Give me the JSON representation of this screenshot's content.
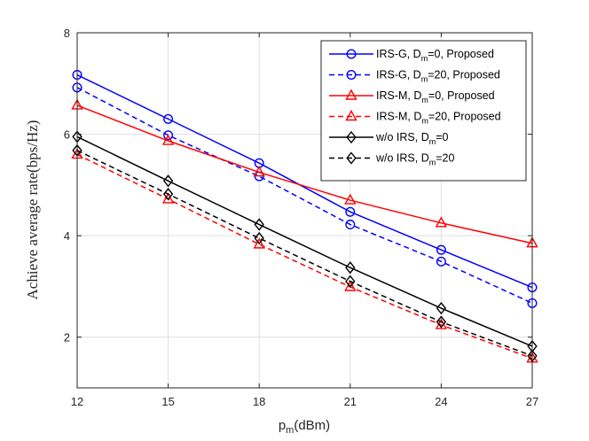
{
  "chart_data": {
    "type": "line",
    "title": "",
    "xlabel": {
      "main": "p",
      "sub": "m",
      "rest": "(dBm)"
    },
    "ylabel": "Achieve average rate(bps/Hz)",
    "x": [
      12,
      15,
      18,
      21,
      24,
      27
    ],
    "xlim": [
      12,
      27
    ],
    "ylim": [
      1,
      8
    ],
    "xticks": [
      "12",
      "15",
      "18",
      "21",
      "24",
      "27"
    ],
    "yticks": [
      "2",
      "4",
      "6",
      "8"
    ],
    "grid": true,
    "legend_position": "top-right",
    "series": [
      {
        "name": "IRS-G, D=0, Proposed",
        "legend": {
          "pre": "IRS-G, D",
          "sub": "m",
          "post": "=0, Proposed"
        },
        "color": "#0000ff",
        "marker": "circle",
        "dash": false,
        "values": [
          7.17,
          6.3,
          5.43,
          4.47,
          3.72,
          2.98
        ]
      },
      {
        "name": "IRS-G, D=20, Proposed",
        "legend": {
          "pre": "IRS-G, D",
          "sub": "m",
          "post": "=20, Proposed"
        },
        "color": "#0000ff",
        "marker": "circle",
        "dash": true,
        "values": [
          6.92,
          5.98,
          5.17,
          4.22,
          3.49,
          2.67
        ]
      },
      {
        "name": "IRS-M, D=0, Proposed",
        "legend": {
          "pre": "IRS-M, D",
          "sub": "m",
          "post": "=0, Proposed"
        },
        "color": "#ff0000",
        "marker": "triangle",
        "dash": false,
        "values": [
          6.57,
          5.87,
          5.25,
          4.7,
          4.25,
          3.85
        ]
      },
      {
        "name": "IRS-M, D=20, Proposed",
        "legend": {
          "pre": "IRS-M, D",
          "sub": "m",
          "post": "=20, Proposed"
        },
        "color": "#ff0000",
        "marker": "triangle",
        "dash": true,
        "values": [
          5.6,
          4.72,
          3.83,
          2.99,
          2.24,
          1.58
        ]
      },
      {
        "name": "w/o IRS, D=0",
        "legend": {
          "pre": "w/o IRS, D",
          "sub": "m",
          "post": "=0"
        },
        "color": "#000000",
        "marker": "diamond",
        "dash": false,
        "values": [
          5.95,
          5.08,
          4.22,
          3.37,
          2.57,
          1.82
        ]
      },
      {
        "name": "w/o IRS, D=20",
        "legend": {
          "pre": "w/o IRS, D",
          "sub": "m",
          "post": "=20"
        },
        "color": "#000000",
        "marker": "diamond",
        "dash": true,
        "values": [
          5.68,
          4.82,
          3.95,
          3.1,
          2.3,
          1.63
        ]
      }
    ]
  }
}
